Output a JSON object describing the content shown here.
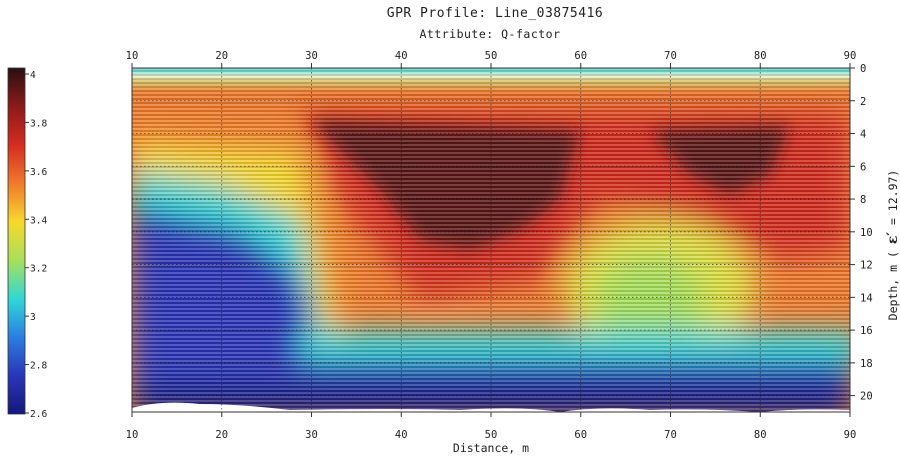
{
  "chart_data": {
    "type": "heatmap",
    "title": "GPR Profile: Line_03875416",
    "subtitle": "Attribute:  Q-factor",
    "xlabel": "Distance, m",
    "ylabel_prefix": "Depth, m ( ",
    "ylabel_symbol": "ε′",
    "ylabel_suffix": " = 12.97)",
    "xlim": [
      10,
      90
    ],
    "ylim": [
      0,
      21
    ],
    "x_ticks": [
      10,
      20,
      30,
      40,
      50,
      60,
      70,
      80,
      90
    ],
    "y_ticks": [
      0,
      2,
      4,
      6,
      8,
      10,
      12,
      14,
      16,
      18,
      20
    ],
    "grid": true,
    "colorbar": {
      "position": "left",
      "range": [
        2.6,
        4.0
      ],
      "ticks": [
        "4",
        "3.8",
        "3.6",
        "3.4",
        "3.2",
        "3",
        "2.8",
        "2.6"
      ],
      "colormap": [
        "#2b1010",
        "#8b1a1a",
        "#d42c1f",
        "#f07a2a",
        "#f6d92b",
        "#a6e05a",
        "#2fd8d8",
        "#2a7fe0",
        "#2a35b8",
        "#141a7a"
      ]
    },
    "regions": [
      {
        "attribute": "low Q",
        "value": 2.7,
        "x_range": [
          10,
          30
        ],
        "depth_range": [
          8,
          20
        ]
      },
      {
        "attribute": "high Q",
        "value": 4.0,
        "x_range": [
          37,
          55
        ],
        "depth_range": [
          3,
          11
        ]
      },
      {
        "attribute": "high Q",
        "value": 3.95,
        "x_range": [
          67,
          78
        ],
        "depth_range": [
          4,
          7
        ]
      },
      {
        "attribute": "mid Q",
        "value": 3.4,
        "x_range": [
          58,
          78
        ],
        "depth_range": [
          10,
          16
        ]
      },
      {
        "attribute": "low Q",
        "value": 2.7,
        "x_range": [
          10,
          90
        ],
        "depth_range": [
          17,
          21
        ]
      }
    ]
  }
}
